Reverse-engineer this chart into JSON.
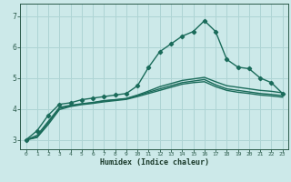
{
  "xlabel": "Humidex (Indice chaleur)",
  "xlim": [
    -0.5,
    23.5
  ],
  "ylim": [
    2.7,
    7.4
  ],
  "yticks": [
    3,
    4,
    5,
    6,
    7
  ],
  "xticks": [
    0,
    1,
    2,
    3,
    4,
    5,
    6,
    7,
    8,
    9,
    10,
    11,
    12,
    13,
    14,
    15,
    16,
    17,
    18,
    19,
    20,
    21,
    22,
    23
  ],
  "bg_color": "#cce9e9",
  "grid_color": "#aed4d4",
  "line_color": "#1a6b5a",
  "lines": [
    {
      "x": [
        0,
        1,
        2,
        3,
        4,
        5,
        6,
        7,
        8,
        9,
        10,
        11,
        12,
        13,
        14,
        15,
        16,
        17,
        18,
        19,
        20,
        21,
        22,
        23
      ],
      "y": [
        3.0,
        3.3,
        3.8,
        4.15,
        4.2,
        4.3,
        4.35,
        4.4,
        4.45,
        4.5,
        4.75,
        5.35,
        5.85,
        6.1,
        6.35,
        6.5,
        6.85,
        6.5,
        5.6,
        5.35,
        5.3,
        5.0,
        4.85,
        4.5
      ],
      "marker": true
    },
    {
      "x": [
        0,
        1,
        2,
        3,
        4,
        5,
        6,
        7,
        8,
        9,
        10,
        11,
        12,
        13,
        14,
        15,
        16,
        17,
        18,
        19,
        20,
        21,
        22,
        23
      ],
      "y": [
        3.0,
        3.15,
        3.6,
        4.05,
        4.12,
        4.17,
        4.21,
        4.27,
        4.3,
        4.34,
        4.45,
        4.58,
        4.72,
        4.82,
        4.92,
        4.97,
        5.02,
        4.88,
        4.75,
        4.7,
        4.65,
        4.6,
        4.57,
        4.52
      ],
      "marker": false
    },
    {
      "x": [
        0,
        1,
        2,
        3,
        4,
        5,
        6,
        7,
        8,
        9,
        10,
        11,
        12,
        13,
        14,
        15,
        16,
        17,
        18,
        19,
        20,
        21,
        22,
        23
      ],
      "y": [
        3.0,
        3.1,
        3.55,
        4.02,
        4.1,
        4.16,
        4.2,
        4.26,
        4.29,
        4.33,
        4.43,
        4.54,
        4.65,
        4.75,
        4.85,
        4.9,
        4.95,
        4.78,
        4.65,
        4.6,
        4.55,
        4.5,
        4.47,
        4.43
      ],
      "marker": false
    },
    {
      "x": [
        0,
        1,
        2,
        3,
        4,
        5,
        6,
        7,
        8,
        9,
        10,
        11,
        12,
        13,
        14,
        15,
        16,
        17,
        18,
        19,
        20,
        21,
        22,
        23
      ],
      "y": [
        3.0,
        3.08,
        3.5,
        3.98,
        4.08,
        4.14,
        4.18,
        4.23,
        4.27,
        4.31,
        4.4,
        4.5,
        4.6,
        4.7,
        4.8,
        4.85,
        4.88,
        4.72,
        4.6,
        4.54,
        4.5,
        4.45,
        4.42,
        4.38
      ],
      "marker": false
    }
  ]
}
